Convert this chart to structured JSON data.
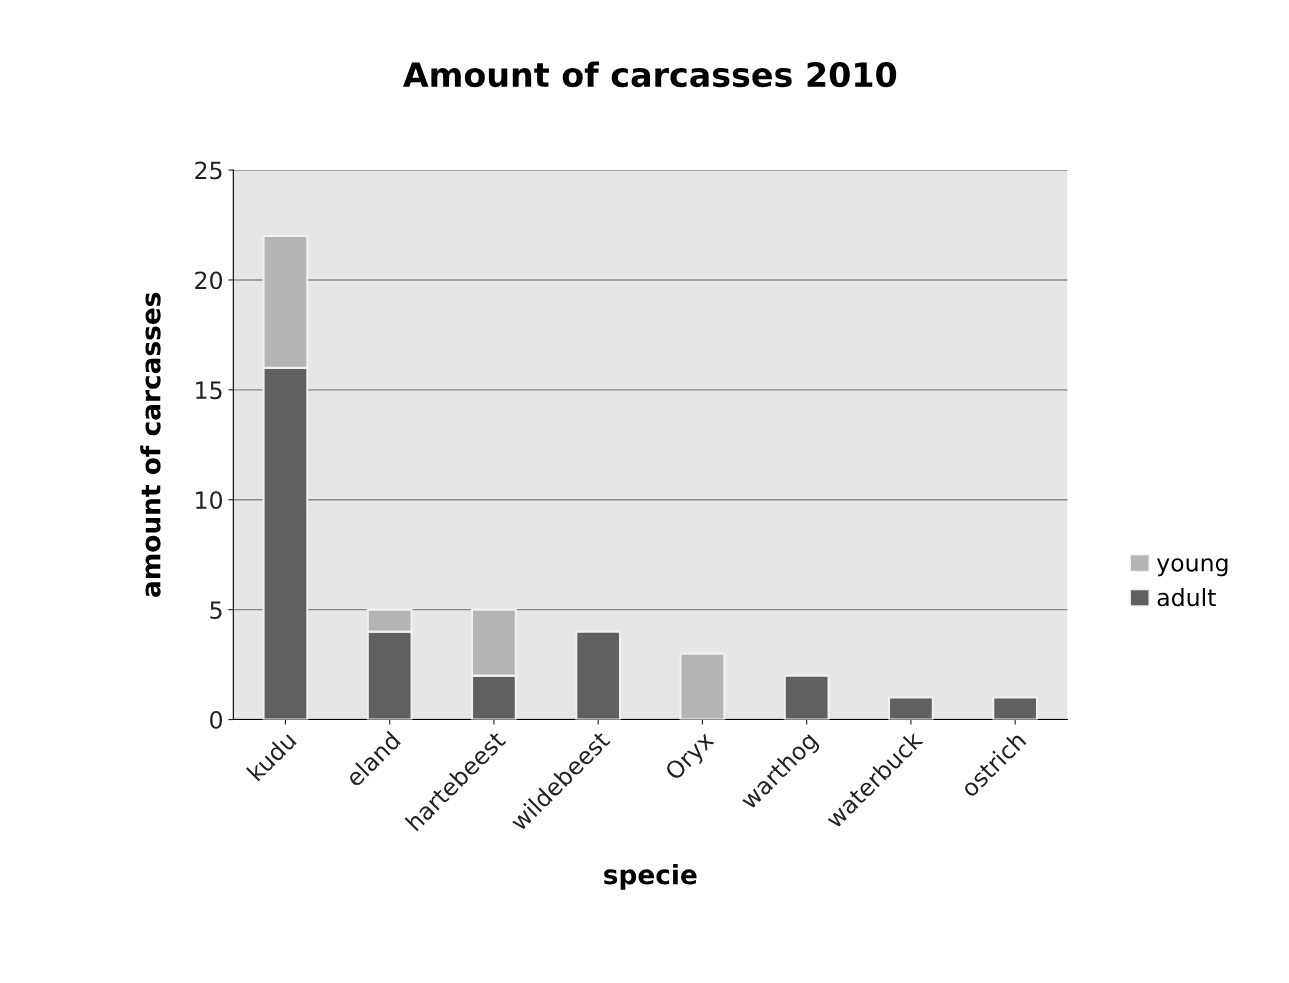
{
  "chart_data": {
    "type": "bar",
    "title": "Amount of carcasses 2010",
    "xlabel": "specie",
    "ylabel": "amount of carcasses",
    "categories": [
      "kudu",
      "eland",
      "hartebeest",
      "wildebeest",
      "Oryx",
      "warthog",
      "waterbuck",
      "ostrich"
    ],
    "stacked": true,
    "series": [
      {
        "name": "adult",
        "color": "#606060",
        "values": [
          16,
          4,
          2,
          4,
          0,
          2,
          1,
          1
        ]
      },
      {
        "name": "young",
        "color": "#b4b4b4",
        "values": [
          6,
          1,
          3,
          0,
          3,
          0,
          0,
          0
        ]
      }
    ],
    "ylim": [
      0,
      25
    ],
    "yticks": [
      0,
      5,
      10,
      15,
      20,
      25
    ],
    "grid": "y",
    "legend": "right"
  }
}
